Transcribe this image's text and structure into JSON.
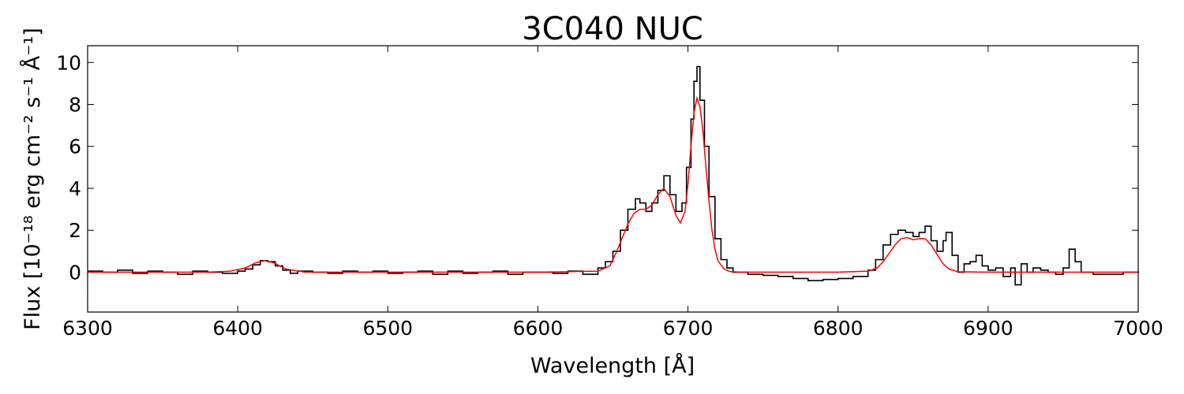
{
  "chart_data": {
    "type": "line",
    "title": "3C040 NUC",
    "xlabel": "Wavelength [Å]",
    "ylabel": "Flux [10⁻¹⁸ erg cm⁻² s⁻¹ Å⁻¹]",
    "xlim": [
      6300,
      7000
    ],
    "ylim": [
      -1.9,
      10.8
    ],
    "x_ticks": [
      6300,
      6400,
      6500,
      6600,
      6700,
      6800,
      6900,
      7000
    ],
    "y_ticks": [
      0,
      2,
      4,
      6,
      8,
      10
    ],
    "grid": false,
    "series": [
      {
        "style": "steps",
        "color": "#000000",
        "x": [
          6300,
          6310,
          6320,
          6330,
          6340,
          6350,
          6360,
          6370,
          6380,
          6390,
          6400,
          6405,
          6410,
          6415,
          6420,
          6425,
          6430,
          6435,
          6440,
          6450,
          6460,
          6470,
          6480,
          6490,
          6500,
          6510,
          6520,
          6530,
          6540,
          6550,
          6560,
          6570,
          6580,
          6590,
          6600,
          6610,
          6620,
          6630,
          6640,
          6645,
          6650,
          6655,
          6660,
          6665,
          6668,
          6672,
          6676,
          6680,
          6684,
          6688,
          6692,
          6696,
          6699,
          6702,
          6704,
          6706,
          6708,
          6711,
          6714,
          6718,
          6722,
          6726,
          6730,
          6740,
          6750,
          6760,
          6770,
          6780,
          6790,
          6800,
          6810,
          6820,
          6825,
          6830,
          6835,
          6840,
          6845,
          6850,
          6854,
          6858,
          6862,
          6866,
          6870,
          6872,
          6876,
          6880,
          6884,
          6888,
          6892,
          6896,
          6900,
          6905,
          6910,
          6915,
          6918,
          6922,
          6926,
          6930,
          6935,
          6940,
          6945,
          6950,
          6954,
          6958,
          6962,
          6970,
          6980,
          6990,
          7000
        ],
        "y": [
          0.05,
          0.0,
          0.1,
          -0.05,
          0.05,
          0.0,
          -0.1,
          0.05,
          0.0,
          -0.05,
          0.05,
          0.15,
          0.35,
          0.55,
          0.5,
          0.3,
          0.1,
          -0.05,
          0.05,
          0.0,
          -0.05,
          0.05,
          0.0,
          0.05,
          -0.05,
          0.0,
          0.05,
          -0.1,
          0.05,
          -0.05,
          0.0,
          0.05,
          -0.1,
          0.0,
          0.0,
          -0.05,
          0.05,
          -0.1,
          0.2,
          0.5,
          1.0,
          2.0,
          3.0,
          3.5,
          3.3,
          2.9,
          3.3,
          3.9,
          4.6,
          3.7,
          2.9,
          3.3,
          5.0,
          7.3,
          9.1,
          9.8,
          8.2,
          6.0,
          3.6,
          1.6,
          0.6,
          0.2,
          0.0,
          -0.1,
          -0.15,
          -0.2,
          -0.3,
          -0.4,
          -0.35,
          -0.3,
          -0.2,
          0.1,
          0.6,
          1.3,
          1.8,
          2.0,
          1.9,
          1.7,
          1.9,
          2.2,
          1.5,
          1.0,
          1.5,
          1.9,
          0.8,
          0.0,
          0.4,
          0.5,
          0.8,
          0.3,
          0.1,
          0.2,
          -0.2,
          0.2,
          -0.6,
          0.4,
          0.0,
          0.2,
          0.1,
          0.0,
          -0.1,
          0.2,
          1.1,
          0.5,
          0.0,
          -0.1,
          -0.1,
          0.0,
          0.05
        ]
      },
      {
        "style": "line",
        "color": "#ff0000",
        "x": [
          6300,
          6380,
          6395,
          6405,
          6412,
          6418,
          6424,
          6432,
          6445,
          6600,
          6640,
          6648,
          6652,
          6656,
          6660,
          6664,
          6668,
          6672,
          6676,
          6680,
          6684,
          6688,
          6692,
          6695,
          6698,
          6700,
          6702,
          6704,
          6706,
          6708,
          6710,
          6712,
          6714,
          6716,
          6718,
          6720,
          6724,
          6728,
          6735,
          6750,
          6800,
          6820,
          6826,
          6830,
          6834,
          6838,
          6842,
          6846,
          6850,
          6854,
          6858,
          6862,
          6866,
          6870,
          6874,
          6880,
          6900,
          7000
        ],
        "y": [
          0.0,
          0.0,
          0.05,
          0.2,
          0.45,
          0.55,
          0.45,
          0.15,
          0.0,
          0.0,
          0.05,
          0.3,
          0.9,
          1.6,
          2.3,
          2.8,
          3.0,
          3.0,
          3.2,
          3.7,
          4.0,
          3.6,
          2.7,
          2.35,
          2.9,
          4.2,
          6.0,
          7.6,
          8.3,
          7.9,
          6.7,
          5.0,
          3.4,
          2.0,
          1.1,
          0.55,
          0.15,
          0.03,
          0.0,
          0.0,
          0.0,
          0.05,
          0.2,
          0.5,
          0.9,
          1.3,
          1.6,
          1.65,
          1.55,
          1.6,
          1.6,
          1.3,
          0.85,
          0.4,
          0.15,
          0.02,
          0.0,
          0.0
        ]
      }
    ]
  }
}
